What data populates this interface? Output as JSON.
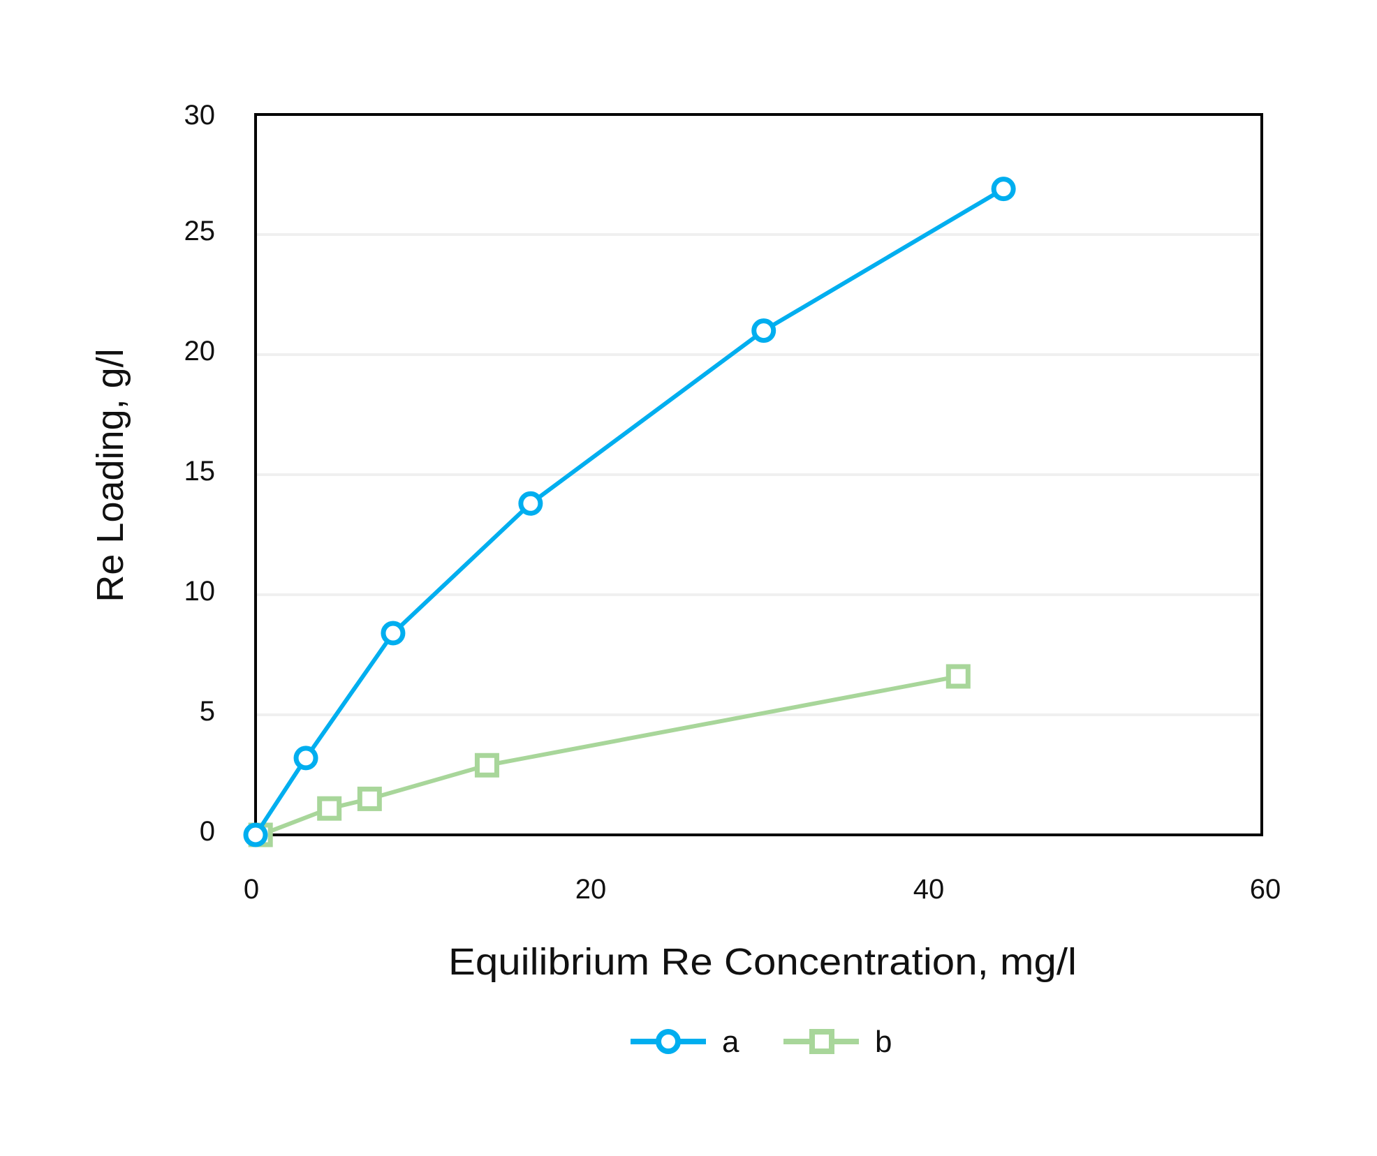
{
  "chart_data": {
    "type": "line",
    "title": "",
    "xlabel": "Equilibrium Re Concentration, mg/l",
    "ylabel": "Re Loading, g/l",
    "xlim": [
      0,
      60
    ],
    "ylim": [
      0,
      30
    ],
    "x_ticks": [
      0,
      20,
      40,
      60
    ],
    "y_ticks": [
      0,
      5,
      10,
      15,
      20,
      25,
      30
    ],
    "grid": {
      "horizontal": true,
      "vertical": false
    },
    "legend_position": "bottom",
    "series": [
      {
        "name": "a",
        "color": "#00AEEF",
        "marker": "circle-open",
        "x": [
          0,
          3.0,
          8.2,
          16.4,
          30.3,
          44.6
        ],
        "y": [
          0,
          3.2,
          8.4,
          13.8,
          21.0,
          26.9
        ]
      },
      {
        "name": "b",
        "color": "#A8D69A",
        "marker": "square-open",
        "x": [
          0.3,
          4.4,
          6.8,
          13.8,
          41.9
        ],
        "y": [
          0,
          1.1,
          1.5,
          2.9,
          6.6
        ]
      }
    ]
  },
  "axes": {
    "x_tick_labels": [
      "0",
      "20",
      "40",
      "60"
    ],
    "y_tick_labels": [
      "0",
      "5",
      "10",
      "15",
      "20",
      "25",
      "30"
    ]
  },
  "legend": {
    "items": [
      {
        "label": "a"
      },
      {
        "label": "b"
      }
    ]
  }
}
